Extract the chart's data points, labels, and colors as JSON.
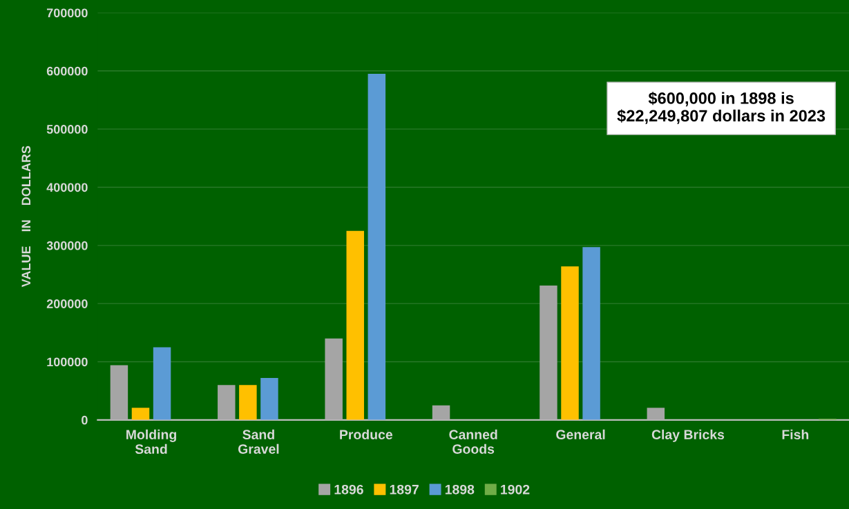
{
  "chart_data": {
    "type": "bar",
    "ylabel": "VALUE    IN    DOLLARS",
    "categories": [
      "Molding\nSand",
      "Sand\nGravel",
      "Produce",
      "Canned\nGoods",
      "General",
      "Clay Bricks",
      "Fish"
    ],
    "series": [
      {
        "name": "1896",
        "color": "#a5a5a5",
        "values": [
          94000,
          60000,
          140000,
          25000,
          231000,
          21000,
          null
        ]
      },
      {
        "name": "1897",
        "color": "#ffc000",
        "values": [
          21000,
          60000,
          325000,
          null,
          264000,
          null,
          null
        ]
      },
      {
        "name": "1898",
        "color": "#5b9bd5",
        "values": [
          125000,
          72000,
          595000,
          null,
          297000,
          null,
          null
        ]
      },
      {
        "name": "1902",
        "color": "#70ad47",
        "values": [
          null,
          null,
          null,
          null,
          null,
          null,
          2000
        ]
      }
    ],
    "ylim": [
      0,
      700000
    ],
    "yticks": [
      0,
      100000,
      200000,
      300000,
      400000,
      500000,
      600000,
      700000
    ],
    "grid": "y",
    "legend": "bottom",
    "annotations": [
      "$600,000 in 1898 is\n$22,249,807 dollars in 2023"
    ]
  }
}
